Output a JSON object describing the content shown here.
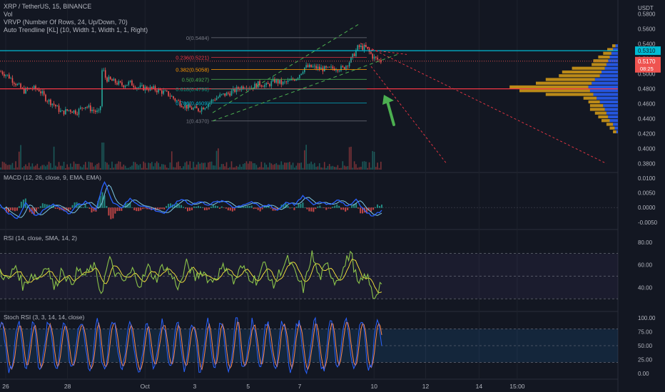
{
  "header": {
    "symbol_line": "XRP / TetherUS, 15, BINANCE",
    "vol_label": "Vol",
    "vrvp_label": "VRVP (Number Of Rows, 24, Up/Down, 70)",
    "trendline_label": "Auto Trendline [KL] (10, Width 1, Width 1, 1, Right)",
    "currency": "USDT"
  },
  "colors": {
    "background": "#131722",
    "up": "#26a69a",
    "down": "#ef5350",
    "cyan_line": "#00bcd4",
    "red_line": "#f23645",
    "channel": "#4caf50",
    "arrow": "#4caf50",
    "macd_line": "#2962ff",
    "macd_signal": "#7ec8e3",
    "rsi_line": "#8bc34a",
    "rsi_ma": "#ffeb3b",
    "stoch_k": "#2962ff",
    "stoch_d": "#ff8a50",
    "vrvp_up": "#2962ff",
    "vrvp_down": "#e6a817"
  },
  "fib_levels": [
    {
      "ratio": "0",
      "price": 0.5484,
      "label": "0(0.5484)"
    },
    {
      "ratio": "0.236",
      "price": 0.5221,
      "label": "0.236(0.5221)"
    },
    {
      "ratio": "0.382",
      "price": 0.5058,
      "label": "0.382(0.5058)"
    },
    {
      "ratio": "0.5",
      "price": 0.4927,
      "label": "0.5(0.4927)"
    },
    {
      "ratio": "0.618",
      "price": 0.4796,
      "label": "0.618(0.4796)"
    },
    {
      "ratio": "0.786",
      "price": 0.4609,
      "label": "0.786(0.4609)"
    },
    {
      "ratio": "1",
      "price": 0.437,
      "label": "1(0.4370)"
    }
  ],
  "horizontal_lines": {
    "cyan": 0.531,
    "red": 0.48,
    "current_dotted": 0.517
  },
  "price_badges": {
    "cyan_label": "0.5310",
    "current_price": "0.5170",
    "countdown": "08:25"
  },
  "chart_data": [
    {
      "pane": "price",
      "type": "candlestick",
      "ylim": [
        0.37,
        0.595
      ],
      "yticks": [
        "0.5800",
        "0.5600",
        "0.5400",
        "0.5200",
        "0.5000",
        "0.4800",
        "0.4600",
        "0.4400",
        "0.4200",
        "0.4000",
        "0.3800"
      ],
      "close_path": [
        [
          0,
          0.503
        ],
        [
          0.02,
          0.497
        ],
        [
          0.04,
          0.487
        ],
        [
          0.06,
          0.477
        ],
        [
          0.08,
          0.481
        ],
        [
          0.1,
          0.479
        ],
        [
          0.12,
          0.466
        ],
        [
          0.14,
          0.459
        ],
        [
          0.16,
          0.448
        ],
        [
          0.18,
          0.452
        ],
        [
          0.2,
          0.449
        ],
        [
          0.22,
          0.458
        ],
        [
          0.24,
          0.452
        ],
        [
          0.26,
          0.447
        ],
        [
          0.27,
          0.498
        ],
        [
          0.28,
          0.493
        ],
        [
          0.3,
          0.489
        ],
        [
          0.32,
          0.485
        ],
        [
          0.34,
          0.488
        ],
        [
          0.36,
          0.482
        ],
        [
          0.38,
          0.481
        ],
        [
          0.4,
          0.48
        ],
        [
          0.42,
          0.477
        ],
        [
          0.44,
          0.473
        ],
        [
          0.46,
          0.465
        ],
        [
          0.48,
          0.458
        ],
        [
          0.5,
          0.454
        ],
        [
          0.52,
          0.452
        ],
        [
          0.54,
          0.458
        ],
        [
          0.56,
          0.466
        ],
        [
          0.58,
          0.471
        ],
        [
          0.6,
          0.474
        ],
        [
          0.62,
          0.479
        ],
        [
          0.64,
          0.484
        ],
        [
          0.66,
          0.482
        ],
        [
          0.68,
          0.487
        ],
        [
          0.7,
          0.484
        ],
        [
          0.72,
          0.491
        ],
        [
          0.74,
          0.487
        ],
        [
          0.76,
          0.49
        ],
        [
          0.78,
          0.496
        ],
        [
          0.8,
          0.509
        ],
        [
          0.82,
          0.509
        ],
        [
          0.84,
          0.507
        ],
        [
          0.86,
          0.506
        ],
        [
          0.88,
          0.508
        ],
        [
          0.9,
          0.507
        ],
        [
          0.92,
          0.518
        ],
        [
          0.94,
          0.536
        ],
        [
          0.96,
          0.535
        ],
        [
          0.98,
          0.522
        ],
        [
          1,
          0.517
        ]
      ],
      "volume_spikes": [
        0.05,
        0.14,
        0.27,
        0.45,
        0.57,
        0.8,
        0.92,
        0.98
      ]
    },
    {
      "pane": "macd",
      "type": "line",
      "title": "MACD (12, 26, close, 9, EMA, EMA)",
      "ylim": [
        -0.007,
        0.011
      ],
      "yticks": [
        "0.0100",
        "0.0050",
        "0.0000",
        "-0.0050"
      ],
      "series": [
        {
          "role": "macd",
          "values": [
            0.001,
            -0.002,
            -0.004,
            0.002,
            -0.003,
            -0.001,
            0.001,
            0,
            -0.002,
            0.001,
            0.002,
            -0.001,
            0.009,
            0.002,
            0,
            0.003,
            0.001,
            0,
            -0.001,
            -0.002,
            0.001,
            0.003,
            0.001,
            0.002,
            0.001,
            0.002,
            0.002,
            0,
            0.001,
            0.002,
            0,
            0.001,
            -0.001,
            0.002,
            0.001,
            0.004,
            0.001,
            0.002,
            0.001,
            0.003,
            0,
            0.003,
            -0.001,
            -0.003,
            -0.001
          ]
        }
      ]
    },
    {
      "pane": "rsi",
      "type": "line",
      "title": "RSI (14, close, SMA, 14, 2)",
      "ylim": [
        20,
        90
      ],
      "yticks": [
        "80.00",
        "60.00",
        "40.00"
      ],
      "bands": [
        70,
        50,
        30
      ],
      "series": [
        {
          "role": "rsi",
          "values": [
            55,
            45,
            60,
            40,
            52,
            48,
            62,
            38,
            58,
            42,
            55,
            50,
            60,
            35,
            65,
            50,
            45,
            55,
            42,
            58,
            47,
            60,
            50,
            40,
            62,
            48,
            55,
            45,
            52,
            60,
            44,
            58,
            50,
            46,
            62,
            40,
            55,
            65,
            50,
            38,
            70,
            48,
            60,
            45,
            55,
            72,
            40,
            52,
            30,
            46
          ]
        }
      ]
    },
    {
      "pane": "stoch_rsi",
      "type": "line",
      "title": "Stoch RSI (3, 3, 14, 14, close)",
      "ylim": [
        -5,
        105
      ],
      "yticks": [
        "100.00",
        "75.00",
        "50.00",
        "25.00",
        "0.00"
      ],
      "bands": [
        80,
        20
      ]
    }
  ],
  "vrvp_rows": [
    {
      "price": 0.5375,
      "up": 3,
      "down": 4
    },
    {
      "price": 0.5325,
      "up": 6,
      "down": 7
    },
    {
      "price": 0.5275,
      "up": 8,
      "down": 10
    },
    {
      "price": 0.5225,
      "up": 10,
      "down": 14
    },
    {
      "price": 0.5175,
      "up": 12,
      "down": 18
    },
    {
      "price": 0.5125,
      "up": 14,
      "down": 18
    },
    {
      "price": 0.5075,
      "up": 16,
      "down": 40
    },
    {
      "price": 0.5025,
      "up": 20,
      "down": 48
    },
    {
      "price": 0.4975,
      "up": 22,
      "down": 50
    },
    {
      "price": 0.4925,
      "up": 28,
      "down": 60
    },
    {
      "price": 0.4875,
      "up": 32,
      "down": 68
    },
    {
      "price": 0.4825,
      "up": 36,
      "down": 96
    },
    {
      "price": 0.4775,
      "up": 34,
      "down": 86
    },
    {
      "price": 0.4725,
      "up": 30,
      "down": 58
    },
    {
      "price": 0.4675,
      "up": 26,
      "down": 16
    },
    {
      "price": 0.4625,
      "up": 22,
      "down": 14
    },
    {
      "price": 0.4575,
      "up": 18,
      "down": 16
    },
    {
      "price": 0.4525,
      "up": 16,
      "down": 18
    },
    {
      "price": 0.4475,
      "up": 14,
      "down": 14
    },
    {
      "price": 0.4425,
      "up": 12,
      "down": 12
    },
    {
      "price": 0.4375,
      "up": 10,
      "down": 10
    },
    {
      "price": 0.4325,
      "up": 6,
      "down": 8
    },
    {
      "price": 0.4275,
      "up": 4,
      "down": 6
    },
    {
      "price": 0.4225,
      "up": 2,
      "down": 4
    }
  ],
  "x_axis": {
    "labels": [
      {
        "text": "26",
        "frac": 0.0
      },
      {
        "text": "28",
        "frac": 0.162
      },
      {
        "text": "Oct",
        "frac": 0.365
      },
      {
        "text": "3",
        "frac": 0.495
      },
      {
        "text": "5",
        "frac": 0.635
      },
      {
        "text": "7",
        "frac": 0.77
      },
      {
        "text": "10",
        "frac": 0.965
      },
      {
        "text": "12",
        "frac": 1.1
      },
      {
        "text": "14",
        "frac": 1.24
      },
      {
        "text": "15:00",
        "frac": 1.34
      }
    ]
  }
}
